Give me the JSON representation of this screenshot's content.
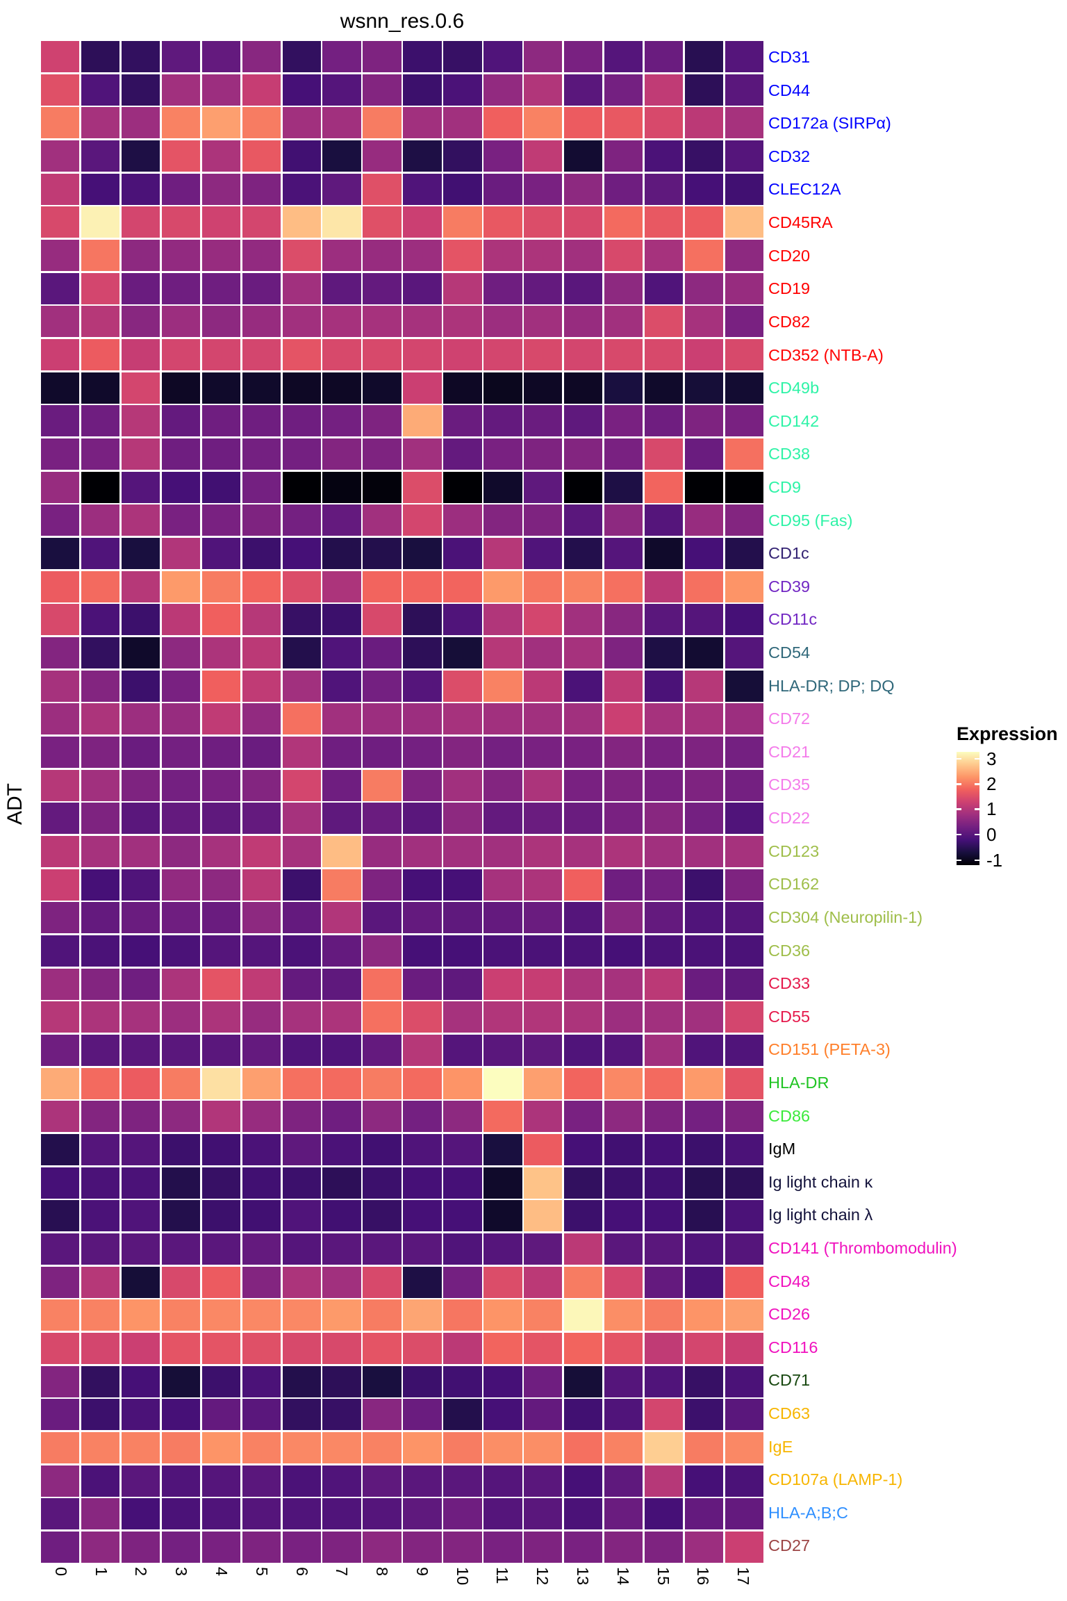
{
  "chart_data": {
    "type": "heatmap",
    "title": "wsnn_res.0.6",
    "ylabel": "ADT",
    "xlabel": "",
    "value_range": [
      -1,
      3
    ],
    "grid_gap_color": "#ffffff",
    "legend": {
      "title": "Expression",
      "ticks": [
        3,
        2,
        1,
        0,
        -1
      ],
      "position": "right"
    },
    "colormap": {
      "name": "magma",
      "stops": [
        "#000004",
        "#180f3e",
        "#451077",
        "#721f81",
        "#9f2f7f",
        "#cd4071",
        "#f1605d",
        "#fd9567",
        "#fec98d",
        "#fcfdbf"
      ]
    },
    "categories": [
      "0",
      "1",
      "2",
      "3",
      "4",
      "5",
      "6",
      "7",
      "8",
      "9",
      "10",
      "11",
      "12",
      "13",
      "14",
      "15",
      "16",
      "17"
    ],
    "rows": [
      {
        "label": "CD31",
        "color": "#0000ff",
        "values": [
          1.25,
          -0.35,
          -0.3,
          0.15,
          0.2,
          0.55,
          -0.3,
          0.35,
          0.45,
          -0.2,
          -0.25,
          0,
          0.6,
          0.4,
          0.05,
          0.25,
          -0.4,
          0.05
        ]
      },
      {
        "label": "CD44",
        "color": "#0000ff",
        "values": [
          1.45,
          0,
          -0.3,
          0.8,
          0.75,
          1.15,
          -0.1,
          0.05,
          0.5,
          -0.2,
          -0.05,
          0.65,
          0.95,
          0.1,
          0.35,
          1.1,
          -0.35,
          0.1
        ]
      },
      {
        "label": "CD172a (SIRPα)",
        "color": "#0000ff",
        "values": [
          1.9,
          0.85,
          0.75,
          1.95,
          2.2,
          1.9,
          0.8,
          0.8,
          1.9,
          0.8,
          0.8,
          1.65,
          1.95,
          1.6,
          1.55,
          1.35,
          1.05,
          0.85
        ]
      },
      {
        "label": "CD32",
        "color": "#0000ff",
        "values": [
          0.8,
          0.1,
          -0.5,
          1.5,
          0.9,
          1.55,
          -0.15,
          -0.55,
          0.7,
          -0.5,
          -0.3,
          0.4,
          1.1,
          -0.65,
          0.45,
          -0.05,
          -0.25,
          0.05
        ]
      },
      {
        "label": "CLEC12A",
        "color": "#0000ff",
        "values": [
          1.1,
          -0.1,
          -0.05,
          0.3,
          0.6,
          0.45,
          -0.05,
          0.15,
          1.45,
          0,
          -0.15,
          0.25,
          0.4,
          0.6,
          0.3,
          0.15,
          -0.1,
          -0.15
        ]
      },
      {
        "label": "CD45RA",
        "color": "#ff0000",
        "values": [
          1.35,
          2.9,
          1.3,
          1.35,
          1.25,
          1.3,
          2.45,
          2.8,
          1.45,
          1.2,
          1.9,
          1.55,
          1.4,
          1.35,
          1.75,
          1.55,
          1.6,
          2.45
        ]
      },
      {
        "label": "CD20",
        "color": "#ff0000",
        "values": [
          0.7,
          1.85,
          0.6,
          0.65,
          0.7,
          0.65,
          1.4,
          0.75,
          0.7,
          0.75,
          1.5,
          0.9,
          0.9,
          0.8,
          1.35,
          0.85,
          1.8,
          0.6
        ]
      },
      {
        "label": "CD19",
        "color": "#ff0000",
        "values": [
          0.1,
          1.3,
          0.25,
          0.3,
          0.3,
          0.25,
          0.8,
          0.15,
          0.2,
          0.1,
          1.0,
          0.3,
          0.2,
          0.1,
          0.6,
          0,
          0.6,
          0.7
        ]
      },
      {
        "label": "CD82",
        "color": "#ff0000",
        "values": [
          0.8,
          1.0,
          0.55,
          0.75,
          0.6,
          0.7,
          0.8,
          0.85,
          0.85,
          0.85,
          0.9,
          0.75,
          0.8,
          0.7,
          0.8,
          1.4,
          0.85,
          0.4
        ]
      },
      {
        "label": "CD352 (NTB-A)",
        "color": "#ff0000",
        "values": [
          1.2,
          1.6,
          1.15,
          1.3,
          1.3,
          1.3,
          1.5,
          1.35,
          1.35,
          1.3,
          1.25,
          1.3,
          1.35,
          1.3,
          1.35,
          1.35,
          1.2,
          1.35
        ]
      },
      {
        "label": "CD49b",
        "color": "#2ff3a7",
        "values": [
          -0.7,
          -0.7,
          1.3,
          -0.75,
          -0.7,
          -0.7,
          -0.75,
          -0.75,
          -0.7,
          1.2,
          -0.75,
          -0.8,
          -0.75,
          -0.75,
          -0.55,
          -0.7,
          -0.6,
          -0.65
        ]
      },
      {
        "label": "CD142",
        "color": "#2ff3a7",
        "values": [
          0.25,
          0.3,
          1.0,
          0.2,
          0.3,
          0.3,
          0.3,
          0.35,
          0.45,
          2.3,
          0.25,
          0.2,
          0.25,
          0.15,
          0.4,
          0.3,
          0.45,
          0.4
        ]
      },
      {
        "label": "CD38",
        "color": "#2ff3a7",
        "values": [
          0.4,
          0.4,
          1.0,
          0.3,
          0.3,
          0.35,
          0.35,
          0.5,
          0.45,
          0.8,
          0.2,
          0.4,
          0.45,
          0.5,
          0.4,
          1.35,
          0.25,
          1.8
        ]
      },
      {
        "label": "CD9",
        "color": "#2ff3a7",
        "values": [
          0.7,
          -1,
          0.05,
          -0.1,
          -0.15,
          0.35,
          -1,
          -0.9,
          -0.95,
          1.4,
          -1,
          -0.7,
          0.15,
          -1,
          -0.5,
          1.7,
          -1,
          -1
        ]
      },
      {
        "label": "CD95 (Fas)",
        "color": "#2ff3a7",
        "values": [
          0.4,
          0.75,
          0.9,
          0.4,
          0.4,
          0.45,
          0.35,
          0.2,
          0.8,
          1.3,
          0.75,
          0.5,
          0.45,
          0.1,
          0.6,
          0.05,
          0.7,
          0.5
        ]
      },
      {
        "label": "CD1c",
        "color": "#342373",
        "values": [
          -0.55,
          0,
          -0.55,
          0.95,
          0,
          -0.2,
          -0.1,
          -0.45,
          -0.45,
          -0.55,
          -0.05,
          1.0,
          0,
          -0.45,
          0.05,
          -0.7,
          -0.1,
          -0.45
        ]
      },
      {
        "label": "CD39",
        "color": "#7227c3",
        "values": [
          1.6,
          1.75,
          1.0,
          2.15,
          1.9,
          1.7,
          1.4,
          0.9,
          1.7,
          1.7,
          1.7,
          2.15,
          1.85,
          1.95,
          1.8,
          1.05,
          1.8,
          2.1
        ]
      },
      {
        "label": "CD11c",
        "color": "#7227c3",
        "values": [
          1.35,
          -0.05,
          -0.2,
          1.05,
          1.65,
          1.0,
          -0.25,
          -0.2,
          1.35,
          -0.35,
          0,
          0.95,
          1.3,
          0.8,
          0.55,
          0.1,
          0.05,
          -0.1
        ]
      },
      {
        "label": "CD54",
        "color": "#30687a",
        "values": [
          0.5,
          -0.3,
          -0.7,
          0.6,
          0.9,
          1.05,
          -0.45,
          0,
          0.25,
          -0.35,
          -0.6,
          1.0,
          0.8,
          0.85,
          0.45,
          -0.5,
          -0.65,
          0.05
        ]
      },
      {
        "label": "HLA-DR; DP; DQ",
        "color": "#30687a",
        "values": [
          0.85,
          0.5,
          -0.2,
          0.4,
          1.65,
          1.1,
          0.8,
          0,
          0.35,
          0.05,
          1.4,
          1.95,
          1.05,
          -0.05,
          1.1,
          -0.05,
          1.0,
          -0.6
        ]
      },
      {
        "label": "CD72",
        "color": "#f47bea",
        "values": [
          0.75,
          0.9,
          0.75,
          0.7,
          1.1,
          0.65,
          1.8,
          0.8,
          0.75,
          0.75,
          0.85,
          0.8,
          0.8,
          0.8,
          1.2,
          0.85,
          0.85,
          0.75
        ]
      },
      {
        "label": "CD21",
        "color": "#f47bea",
        "values": [
          0.4,
          0.45,
          0.25,
          0.35,
          0.3,
          0.25,
          0.95,
          0.3,
          0.3,
          0.35,
          0.5,
          0.35,
          0.4,
          0.4,
          0.5,
          0.4,
          0.45,
          0.35
        ]
      },
      {
        "label": "CD35",
        "color": "#f47bea",
        "values": [
          1.0,
          0.8,
          0.45,
          0.35,
          0.4,
          0.5,
          1.3,
          0.3,
          1.9,
          0.45,
          0.8,
          0.5,
          0.9,
          0.4,
          0.45,
          0.4,
          0.45,
          0.35
        ]
      },
      {
        "label": "CD22",
        "color": "#f47bea",
        "values": [
          0.2,
          0.45,
          0.1,
          0.2,
          0.15,
          0.2,
          0.85,
          0.15,
          0.25,
          0.1,
          0.6,
          0.2,
          0.25,
          0.25,
          0.4,
          0.55,
          0.35,
          0
        ]
      },
      {
        "label": "CD123",
        "color": "#9fbe4a",
        "values": [
          1.05,
          0.85,
          0.8,
          0.6,
          0.85,
          1.1,
          0.85,
          2.45,
          0.7,
          0.8,
          0.8,
          0.8,
          0.9,
          0.85,
          0.9,
          0.8,
          0.8,
          0.85
        ]
      },
      {
        "label": "CD162",
        "color": "#9fbe4a",
        "values": [
          1.2,
          -0.1,
          0,
          0.65,
          0.6,
          1.05,
          -0.2,
          1.9,
          0.45,
          -0.1,
          -0.1,
          0.85,
          0.9,
          1.65,
          0.3,
          0.35,
          -0.2,
          0.45
        ]
      },
      {
        "label": "CD304 (Neuropilin-1)",
        "color": "#9fbe4a",
        "values": [
          0.45,
          0.2,
          0.25,
          0.3,
          0.25,
          0.6,
          0.2,
          0.95,
          0.1,
          0.2,
          0.15,
          0.2,
          0.25,
          0.05,
          0.55,
          0.2,
          0,
          0.05
        ]
      },
      {
        "label": "CD36",
        "color": "#9fbe4a",
        "values": [
          0,
          -0.05,
          -0.1,
          -0.05,
          0.05,
          0.05,
          -0.05,
          0.2,
          0.6,
          -0.1,
          -0.1,
          -0.05,
          -0.05,
          -0.05,
          -0.1,
          -0.05,
          -0.05,
          -0.05
        ]
      },
      {
        "label": "CD33",
        "color": "#e51a4c",
        "values": [
          0.75,
          0.5,
          0.3,
          0.9,
          1.5,
          1.1,
          0.2,
          0.15,
          1.8,
          0.25,
          0.15,
          1.2,
          1.15,
          0.9,
          0.85,
          1.05,
          0.25,
          0.15
        ]
      },
      {
        "label": "CD55",
        "color": "#e51a4c",
        "values": [
          1.0,
          0.9,
          0.85,
          0.75,
          0.9,
          0.7,
          0.85,
          0.9,
          1.8,
          1.4,
          0.85,
          0.95,
          0.95,
          0.9,
          0.75,
          0.8,
          0.8,
          1.3
        ]
      },
      {
        "label": "CD151 (PETA-3)",
        "color": "#ff7f2a",
        "values": [
          0.3,
          0.1,
          0.1,
          0.1,
          0.1,
          0.2,
          0,
          0,
          0.2,
          1.0,
          0.05,
          0.1,
          0.15,
          0,
          0.05,
          0.8,
          0,
          0
        ]
      },
      {
        "label": "HLA-DR",
        "color": "#1fc422",
        "values": [
          2.3,
          1.75,
          1.6,
          1.9,
          2.75,
          2.2,
          1.8,
          1.75,
          1.9,
          1.75,
          2.1,
          3.0,
          2.2,
          1.7,
          2.0,
          1.75,
          2.15,
          1.5
        ]
      },
      {
        "label": "CD86",
        "color": "#3bea3b",
        "values": [
          0.9,
          0.5,
          0.45,
          0.6,
          0.95,
          0.7,
          0.45,
          0.3,
          0.6,
          0.35,
          0.6,
          1.75,
          0.9,
          0.4,
          0.6,
          0.45,
          0.35,
          0.45
        ]
      },
      {
        "label": "IgM",
        "color": "#000000",
        "values": [
          -0.45,
          0.05,
          0.05,
          -0.2,
          -0.15,
          -0.05,
          0.15,
          -0.05,
          -0.15,
          0,
          0.05,
          -0.55,
          1.6,
          -0.1,
          -0.15,
          -0.1,
          -0.2,
          -0.05
        ]
      },
      {
        "label": "Ig light chain κ",
        "color": "#13123b",
        "values": [
          -0.1,
          -0.05,
          -0.05,
          -0.45,
          -0.25,
          -0.15,
          -0.2,
          -0.35,
          -0.2,
          -0.1,
          -0.1,
          -0.7,
          2.5,
          -0.3,
          -0.2,
          -0.15,
          -0.4,
          -0.35
        ]
      },
      {
        "label": "Ig light chain λ",
        "color": "#13123b",
        "values": [
          -0.4,
          -0.05,
          0,
          -0.45,
          -0.2,
          -0.15,
          0,
          -0.15,
          -0.25,
          -0.1,
          -0.1,
          -0.7,
          2.45,
          -0.2,
          -0.1,
          -0.1,
          -0.4,
          -0.05
        ]
      },
      {
        "label": "CD141 (Thrombomodulin)",
        "color": "#f012be",
        "values": [
          0.1,
          0.1,
          0.1,
          0.1,
          0.1,
          0.2,
          0.05,
          0.1,
          0.1,
          0.1,
          0,
          0.05,
          0.15,
          1.05,
          0.1,
          0.1,
          0,
          0.05
        ]
      },
      {
        "label": "CD48",
        "color": "#f012be",
        "values": [
          0.45,
          1.0,
          -0.6,
          1.35,
          1.6,
          0.5,
          0.9,
          0.8,
          1.35,
          -0.5,
          0.35,
          1.4,
          1.05,
          1.9,
          1.3,
          0.2,
          -0.05,
          1.65
        ]
      },
      {
        "label": "CD26",
        "color": "#f012be",
        "values": [
          1.95,
          1.95,
          2.1,
          1.95,
          2.0,
          2.0,
          2.0,
          2.15,
          1.9,
          2.25,
          1.85,
          2.1,
          1.95,
          2.95,
          2.05,
          1.9,
          2.1,
          2.2
        ]
      },
      {
        "label": "CD116",
        "color": "#f012be",
        "values": [
          1.35,
          1.3,
          1.2,
          1.5,
          1.5,
          1.45,
          1.35,
          1.35,
          1.5,
          1.4,
          1.05,
          1.7,
          1.5,
          1.7,
          1.5,
          1.1,
          1.3,
          1.2
        ]
      },
      {
        "label": "CD71",
        "color": "#17470f",
        "values": [
          0.5,
          -0.3,
          -0.1,
          -0.6,
          -0.2,
          -0.05,
          -0.45,
          -0.35,
          -0.55,
          -0.2,
          -0.15,
          -0.1,
          0.3,
          -0.6,
          0.05,
          0,
          -0.25,
          -0.05
        ]
      },
      {
        "label": "CD63",
        "color": "#f7b500",
        "values": [
          0.25,
          -0.2,
          -0.05,
          -0.1,
          0.2,
          0.1,
          -0.3,
          -0.25,
          0.55,
          0.25,
          -0.45,
          -0.1,
          0.2,
          -0.15,
          0,
          1.3,
          -0.2,
          0.1
        ]
      },
      {
        "label": "IgE",
        "color": "#f7b500",
        "values": [
          1.9,
          1.95,
          1.95,
          1.9,
          2.1,
          1.95,
          2.0,
          2.0,
          1.95,
          2.1,
          1.9,
          2.05,
          2.05,
          1.8,
          1.95,
          2.6,
          1.9,
          2.0
        ]
      },
      {
        "label": "CD107a (LAMP-1)",
        "color": "#f7b500",
        "values": [
          0.6,
          -0.05,
          0.1,
          0,
          0.05,
          0.1,
          -0.05,
          0,
          0.15,
          0.1,
          0.1,
          0.05,
          0.1,
          -0.1,
          0.15,
          1.0,
          -0.1,
          -0.05
        ]
      },
      {
        "label": "HLA-A;B;C",
        "color": "#2e8fff",
        "values": [
          0.1,
          0.55,
          -0.1,
          -0.05,
          0,
          0.05,
          0,
          0,
          0.05,
          0.15,
          0.3,
          0.05,
          0.1,
          -0.05,
          0.25,
          -0.1,
          0.2,
          0.2
        ]
      },
      {
        "label": "CD27",
        "color": "#9c4444",
        "values": [
          0.3,
          0.6,
          0.45,
          0.35,
          0.4,
          0.45,
          0.4,
          0.45,
          0.6,
          0.5,
          0.5,
          0.4,
          0.45,
          0.4,
          0.5,
          0.45,
          0.75,
          1.2
        ]
      }
    ]
  }
}
